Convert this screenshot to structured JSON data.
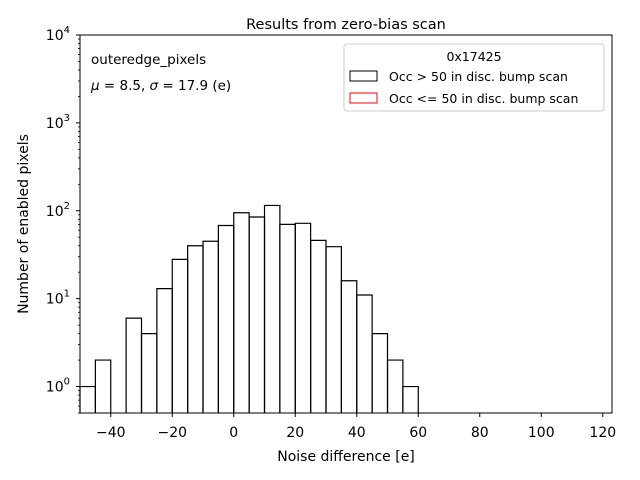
{
  "chart_data": {
    "type": "histogram",
    "title": "Results from zero-bias scan",
    "xlabel": "Noise difference [e]",
    "ylabel": "Number of enabled pixels",
    "xlim": [
      -50,
      123
    ],
    "ylim": [
      0.5,
      10000
    ],
    "yscale": "log",
    "grid": false,
    "x_ticks": [
      -40,
      -20,
      0,
      20,
      40,
      60,
      80,
      100,
      120
    ],
    "x_tick_labels": [
      "−40",
      "−20",
      "0",
      "20",
      "40",
      "60",
      "80",
      "100",
      "120"
    ],
    "y_ticks": [
      1,
      10,
      100,
      1000,
      10000
    ],
    "y_tick_labels": [
      {
        "base": "10",
        "exp": "0"
      },
      {
        "base": "10",
        "exp": "1"
      },
      {
        "base": "10",
        "exp": "2"
      },
      {
        "base": "10",
        "exp": "3"
      },
      {
        "base": "10",
        "exp": "4"
      }
    ],
    "bin_edges": [
      -50,
      -45,
      -40,
      -35,
      -30,
      -25,
      -20,
      -15,
      -10,
      -5,
      0,
      5,
      10,
      15,
      20,
      25,
      30,
      35,
      40,
      45,
      50,
      55,
      60
    ],
    "series": [
      {
        "name": "Occ > 50 in disc. bump scan",
        "color": "#000000",
        "values": [
          1,
          2,
          0,
          6,
          4,
          13,
          28,
          40,
          45,
          68,
          95,
          85,
          115,
          70,
          72,
          46,
          39,
          16,
          11,
          4,
          2,
          1
        ]
      },
      {
        "name": "Occ <= 50 in disc. bump scan",
        "color": "#ff0000",
        "values": []
      }
    ],
    "legend": {
      "title": "0x17425",
      "position": "top-right"
    },
    "annotations": [
      "outeredge_pixels",
      "μ = 8.5, σ = 17.9 (e)"
    ]
  }
}
